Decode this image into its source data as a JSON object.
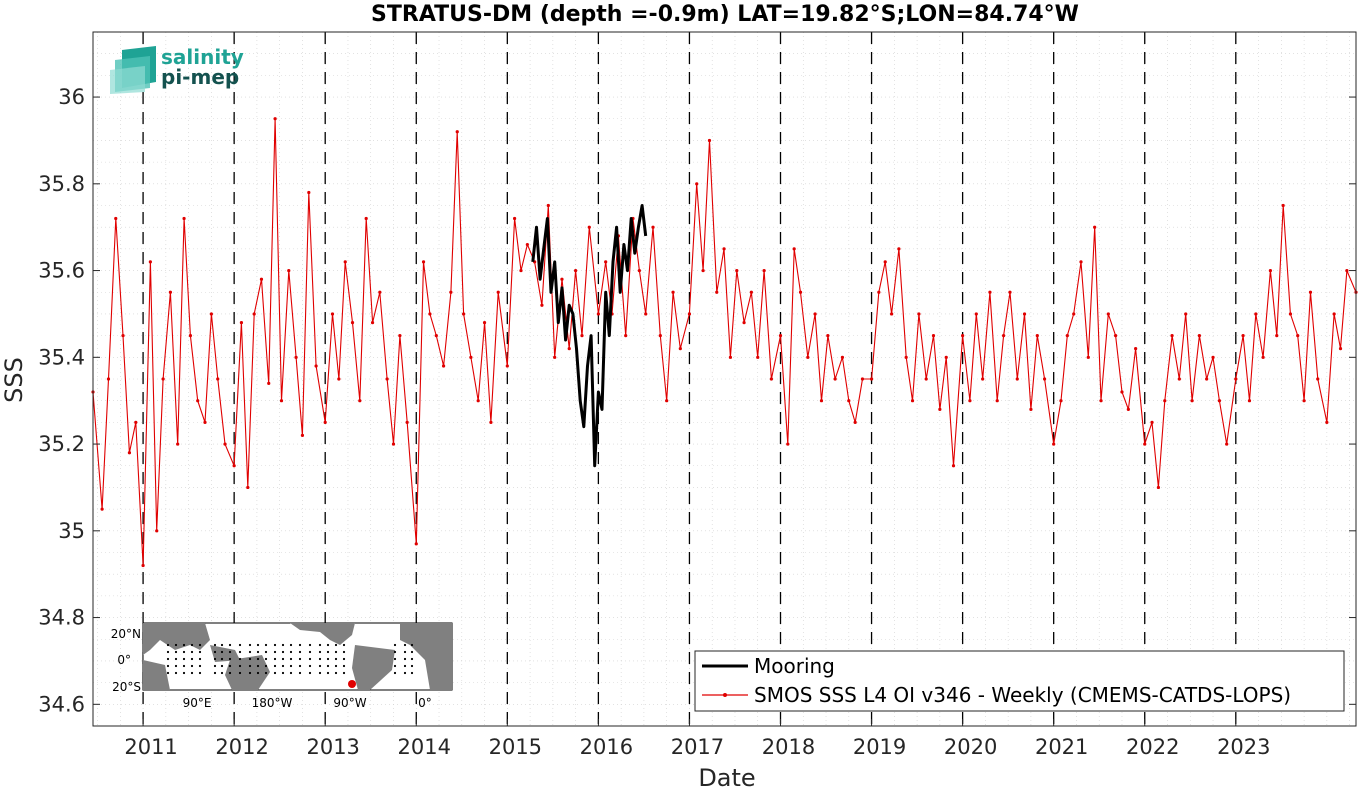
{
  "chart_data": {
    "type": "line",
    "title": "STRATUS-DM (depth =-0.9m) LAT=19.82°S;LON=84.74°W",
    "xlabel": "Date",
    "ylabel": "SSS",
    "xlim": [
      2010.45,
      2024.32
    ],
    "ylim": [
      34.55,
      36.15
    ],
    "yticks": [
      34.6,
      34.8,
      35,
      35.2,
      35.4,
      35.6,
      35.8,
      36
    ],
    "ytick_labels": [
      "34.6",
      "34.8",
      "35",
      "35.2",
      "35.4",
      "35.6",
      "35.8",
      "36"
    ],
    "xticks": [
      2011,
      2012,
      2013,
      2014,
      2015,
      2016,
      2017,
      2018,
      2019,
      2020,
      2021,
      2022,
      2023
    ],
    "xtick_labels": [
      "2011",
      "2012",
      "2013",
      "2014",
      "2015",
      "2016",
      "2017",
      "2018",
      "2019",
      "2020",
      "2021",
      "2022",
      "2023"
    ],
    "grid": true,
    "year_separators": [
      2011,
      2012,
      2013,
      2014,
      2015,
      2016,
      2017,
      2018,
      2019,
      2020,
      2021,
      2022,
      2023
    ],
    "legend_position": "bottom-right",
    "series": [
      {
        "name": "Mooring",
        "color": "#000000",
        "style": "thick-line",
        "x": [
          2015.28,
          2015.32,
          2015.36,
          2015.4,
          2015.44,
          2015.48,
          2015.52,
          2015.56,
          2015.6,
          2015.64,
          2015.68,
          2015.72,
          2015.76,
          2015.8,
          2015.84,
          2015.88,
          2015.92,
          2015.96,
          2016.0,
          2016.04,
          2016.08,
          2016.12,
          2016.16,
          2016.2,
          2016.24,
          2016.28,
          2016.32,
          2016.36,
          2016.4,
          2016.44,
          2016.48,
          2016.52
        ],
        "y": [
          35.62,
          35.7,
          35.58,
          35.65,
          35.72,
          35.55,
          35.62,
          35.48,
          35.56,
          35.44,
          35.52,
          35.5,
          35.42,
          35.3,
          35.24,
          35.38,
          35.45,
          35.15,
          35.32,
          35.28,
          35.55,
          35.45,
          35.62,
          35.7,
          35.55,
          35.66,
          35.6,
          35.72,
          35.64,
          35.7,
          35.75,
          35.68
        ]
      },
      {
        "name": "SMOS SSS L4 OI v346 - Weekly (CMEMS-CATDS-LOPS)",
        "color": "#e00000",
        "style": "line-with-dots",
        "x": [
          2010.45,
          2010.55,
          2010.62,
          2010.7,
          2010.78,
          2010.85,
          2010.92,
          2011.0,
          2011.08,
          2011.15,
          2011.22,
          2011.3,
          2011.38,
          2011.45,
          2011.52,
          2011.6,
          2011.68,
          2011.75,
          2011.82,
          2011.9,
          2012.0,
          2012.08,
          2012.15,
          2012.22,
          2012.3,
          2012.38,
          2012.45,
          2012.52,
          2012.6,
          2012.68,
          2012.75,
          2012.82,
          2012.9,
          2013.0,
          2013.08,
          2013.15,
          2013.22,
          2013.3,
          2013.38,
          2013.45,
          2013.52,
          2013.6,
          2013.68,
          2013.75,
          2013.82,
          2013.9,
          2014.0,
          2014.08,
          2014.15,
          2014.22,
          2014.3,
          2014.38,
          2014.45,
          2014.52,
          2014.6,
          2014.68,
          2014.75,
          2014.82,
          2014.9,
          2015.0,
          2015.08,
          2015.15,
          2015.22,
          2015.3,
          2015.38,
          2015.45,
          2015.52,
          2015.6,
          2015.68,
          2015.75,
          2015.82,
          2015.9,
          2016.0,
          2016.08,
          2016.15,
          2016.22,
          2016.3,
          2016.38,
          2016.45,
          2016.52,
          2016.6,
          2016.68,
          2016.75,
          2016.82,
          2016.9,
          2017.0,
          2017.08,
          2017.15,
          2017.22,
          2017.3,
          2017.38,
          2017.45,
          2017.52,
          2017.6,
          2017.68,
          2017.75,
          2017.82,
          2017.9,
          2018.0,
          2018.08,
          2018.15,
          2018.22,
          2018.3,
          2018.38,
          2018.45,
          2018.52,
          2018.6,
          2018.68,
          2018.75,
          2018.82,
          2018.9,
          2019.0,
          2019.08,
          2019.15,
          2019.22,
          2019.3,
          2019.38,
          2019.45,
          2019.52,
          2019.6,
          2019.68,
          2019.75,
          2019.82,
          2019.9,
          2020.0,
          2020.08,
          2020.15,
          2020.22,
          2020.3,
          2020.38,
          2020.45,
          2020.52,
          2020.6,
          2020.68,
          2020.75,
          2020.82,
          2020.9,
          2021.0,
          2021.08,
          2021.15,
          2021.22,
          2021.3,
          2021.38,
          2021.45,
          2021.52,
          2021.6,
          2021.68,
          2021.75,
          2021.82,
          2021.9,
          2022.0,
          2022.08,
          2022.15,
          2022.22,
          2022.3,
          2022.38,
          2022.45,
          2022.52,
          2022.6,
          2022.68,
          2022.75,
          2022.82,
          2022.9,
          2023.0,
          2023.08,
          2023.15,
          2023.22,
          2023.3,
          2023.38,
          2023.45,
          2023.52,
          2023.6,
          2023.68,
          2023.75,
          2023.82,
          2023.9,
          2024.0,
          2024.08,
          2024.15,
          2024.22,
          2024.32
        ],
        "y": [
          35.32,
          35.05,
          35.35,
          35.72,
          35.45,
          35.18,
          35.25,
          34.92,
          35.62,
          35.0,
          35.35,
          35.55,
          35.2,
          35.72,
          35.45,
          35.3,
          35.25,
          35.5,
          35.35,
          35.2,
          35.15,
          35.48,
          35.1,
          35.5,
          35.58,
          35.34,
          35.95,
          35.3,
          35.6,
          35.4,
          35.22,
          35.78,
          35.38,
          35.25,
          35.5,
          35.35,
          35.62,
          35.48,
          35.3,
          35.72,
          35.48,
          35.55,
          35.35,
          35.2,
          35.45,
          35.25,
          34.97,
          35.62,
          35.5,
          35.45,
          35.38,
          35.55,
          35.92,
          35.5,
          35.4,
          35.3,
          35.48,
          35.25,
          35.55,
          35.38,
          35.72,
          35.6,
          35.66,
          35.62,
          35.52,
          35.75,
          35.4,
          35.58,
          35.42,
          35.6,
          35.45,
          35.7,
          35.5,
          35.62,
          35.5,
          35.68,
          35.45,
          35.72,
          35.6,
          35.5,
          35.7,
          35.45,
          35.3,
          35.55,
          35.42,
          35.5,
          35.8,
          35.6,
          35.9,
          35.55,
          35.65,
          35.4,
          35.6,
          35.48,
          35.55,
          35.4,
          35.6,
          35.35,
          35.45,
          35.2,
          35.65,
          35.55,
          35.4,
          35.5,
          35.3,
          35.45,
          35.35,
          35.4,
          35.3,
          35.25,
          35.35,
          35.35,
          35.55,
          35.62,
          35.5,
          35.65,
          35.4,
          35.3,
          35.5,
          35.35,
          35.45,
          35.28,
          35.4,
          35.15,
          35.45,
          35.3,
          35.5,
          35.35,
          35.55,
          35.3,
          35.45,
          35.55,
          35.35,
          35.5,
          35.28,
          35.45,
          35.35,
          35.2,
          35.3,
          35.45,
          35.5,
          35.62,
          35.4,
          35.7,
          35.3,
          35.5,
          35.45,
          35.32,
          35.28,
          35.42,
          35.2,
          35.25,
          35.1,
          35.3,
          35.45,
          35.35,
          35.5,
          35.3,
          35.45,
          35.35,
          35.4,
          35.3,
          35.2,
          35.35,
          35.45,
          35.3,
          35.5,
          35.4,
          35.6,
          35.45,
          35.75,
          35.5,
          35.45,
          35.3,
          35.55,
          35.35,
          35.25,
          35.5,
          35.42,
          35.6,
          35.55
        ]
      }
    ]
  },
  "legend": {
    "items": [
      {
        "label": "Mooring",
        "color": "#000000"
      },
      {
        "label": "SMOS SSS L4 OI v346 - Weekly (CMEMS-CATDS-LOPS)",
        "color": "#e00000"
      }
    ]
  },
  "inset_map": {
    "lat_labels": [
      "20°N",
      "0°",
      "20°S"
    ],
    "lon_labels": [
      "90°E",
      "180°W",
      "90°W",
      "0°"
    ],
    "marker_color": "#e00000"
  },
  "logo": {
    "line1": "salinity",
    "line2": "pi-mep"
  }
}
